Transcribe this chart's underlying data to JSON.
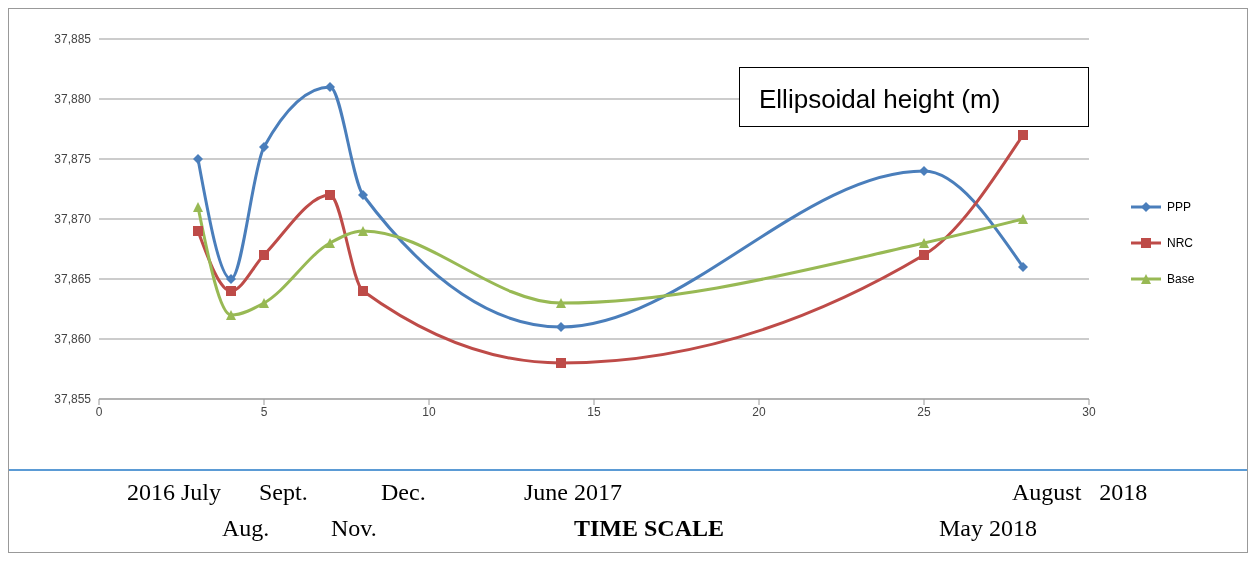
{
  "chart_data": {
    "type": "line",
    "title": "Ellipsoidal height (m)",
    "xlabel": "TIME SCALE",
    "x": [
      3,
      4,
      5,
      7,
      8,
      14,
      25,
      28
    ],
    "series": [
      {
        "name": "PPP",
        "color": "#4a7ebb",
        "marker": "diamond",
        "values": [
          37875,
          37865,
          37876,
          37881,
          37872,
          37861,
          37874,
          37866
        ]
      },
      {
        "name": "NRC",
        "color": "#be4b48",
        "marker": "square",
        "values": [
          37869,
          37864,
          37867,
          37872,
          37864,
          37858,
          37867,
          37877
        ]
      },
      {
        "name": "Base",
        "color": "#98b954",
        "marker": "triangle",
        "values": [
          37871,
          37862,
          37863,
          37868,
          37869,
          37863,
          37868,
          37870
        ]
      }
    ],
    "xlim": [
      0,
      30
    ],
    "xticks": [
      0,
      5,
      10,
      15,
      20,
      25,
      30
    ],
    "ylim": [
      37855,
      37885
    ],
    "yticks": [
      {
        "value": 37855,
        "label": "37,855"
      },
      {
        "value": 37860,
        "label": "37,860"
      },
      {
        "value": 37865,
        "label": "37,865"
      },
      {
        "value": 37870,
        "label": "37,870"
      },
      {
        "value": 37875,
        "label": "37,875"
      },
      {
        "value": 37880,
        "label": "37,880"
      },
      {
        "value": 37885,
        "label": "37,885"
      }
    ],
    "grid": "y",
    "legend": "right",
    "annotations": [
      "2016 July",
      "Sept.",
      "Dec.",
      "June 2017",
      "August   2018",
      "Aug.",
      "Nov.",
      "May 2018"
    ]
  }
}
